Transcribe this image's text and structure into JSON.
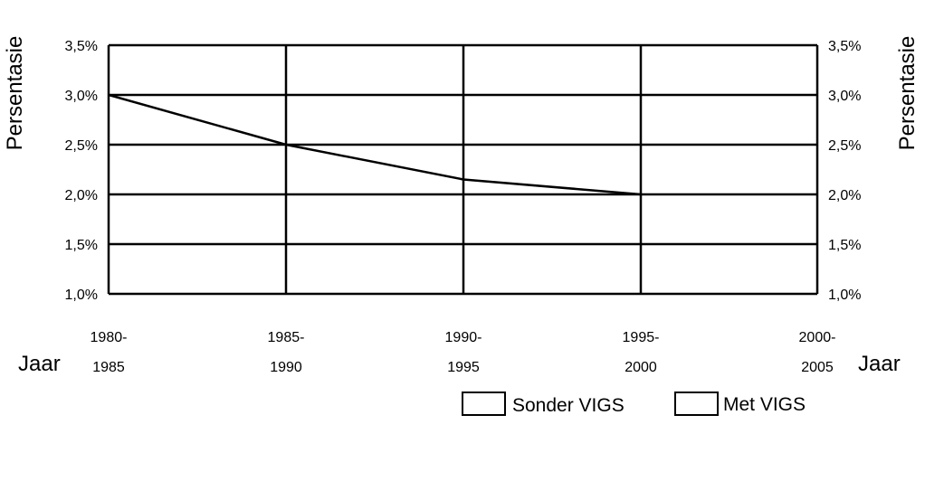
{
  "chart_data": {
    "type": "line",
    "categories": [
      [
        "1980-",
        "1985"
      ],
      [
        "1985-",
        "1990"
      ],
      [
        "1990-",
        "1995"
      ],
      [
        "1995-",
        "2000"
      ],
      [
        "2000-",
        "2005"
      ]
    ],
    "series": [
      {
        "name": "Sonder VIGS",
        "values": [
          3.0,
          2.5,
          2.15,
          2.0,
          null
        ]
      },
      {
        "name": "Met VIGS",
        "values": [
          null,
          null,
          null,
          null,
          null
        ]
      }
    ],
    "ylabel_left": "Persentasie",
    "ylabel_right": "Persentasie",
    "xlabel_left": "Jaar",
    "xlabel_right": "Jaar",
    "yticks": [
      "1,0%",
      "1,5%",
      "2,0%",
      "2,5%",
      "3,0%",
      "3,5%"
    ],
    "ytick_values": [
      1.0,
      1.5,
      2.0,
      2.5,
      3.0,
      3.5
    ],
    "ylim": [
      1.0,
      3.5
    ],
    "grid": true,
    "legend_position": "bottom",
    "line_color": "#000000"
  }
}
